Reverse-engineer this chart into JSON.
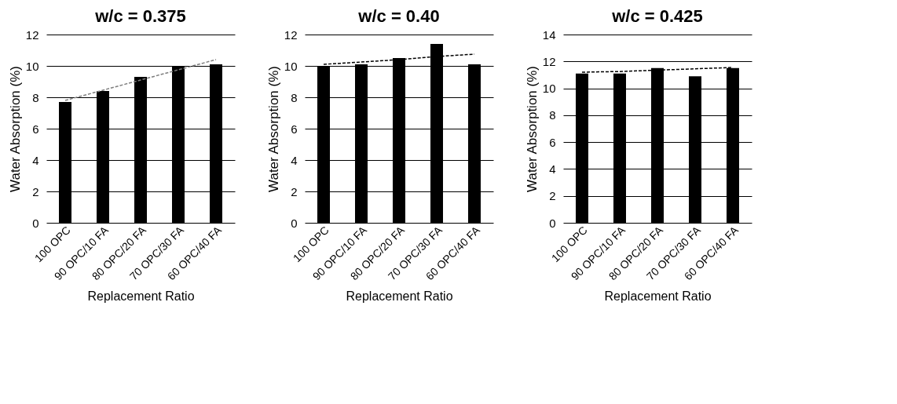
{
  "chart_data": [
    {
      "type": "bar",
      "title": "w/c = 0.375",
      "xlabel": "Replacement Ratio",
      "ylabel": "Water Absorption (%)",
      "categories": [
        "100 OPC",
        "90 OPC/10 FA",
        "80 OPC/20 FA",
        "70 OPC/30 FA",
        "60 OPC/40 FA"
      ],
      "ylim": [
        0,
        12
      ],
      "yticks": [
        0,
        2,
        4,
        6,
        8,
        10,
        12
      ],
      "grid": "y",
      "series": [
        {
          "color": "#000000",
          "values": [
            7.7,
            8.4,
            9.3,
            10.0,
            10.1
          ]
        },
        {
          "type": "line",
          "color": "#7f7f7f",
          "line_style": "dashed",
          "values": [
            7.8,
            8.45,
            9.1,
            9.75,
            10.4
          ]
        }
      ]
    },
    {
      "type": "bar",
      "title": "w/c = 0.40",
      "xlabel": "Replacement Ratio",
      "ylabel": "Water Absorption (%)",
      "categories": [
        "100 OPC",
        "90 OPC/10 FA",
        "80 OPC/20 FA",
        "70 OPC/30 FA",
        "60 OPC/40 FA"
      ],
      "ylim": [
        0,
        12
      ],
      "yticks": [
        0,
        2,
        4,
        6,
        8,
        10,
        12
      ],
      "grid": "y",
      "series": [
        {
          "color": "#000000",
          "values": [
            10.0,
            10.1,
            10.5,
            11.4,
            10.1
          ]
        },
        {
          "type": "line",
          "color": "#000000",
          "line_style": "dashed",
          "values": [
            10.1,
            10.25,
            10.4,
            10.6,
            10.75
          ]
        }
      ]
    },
    {
      "type": "bar",
      "title": "w/c = 0.425",
      "xlabel": "Replacement Ratio",
      "ylabel": "Water Absorption (%)",
      "categories": [
        "100 OPC",
        "90 OPC/10 FA",
        "80 OPC/20 FA",
        "70 OPC/30 FA",
        "60 OPC/40 FA"
      ],
      "ylim": [
        0,
        14
      ],
      "yticks": [
        0,
        2,
        4,
        6,
        8,
        10,
        12,
        14
      ],
      "grid": "y",
      "series": [
        {
          "color": "#000000",
          "values": [
            11.1,
            11.1,
            11.5,
            10.9,
            11.5
          ]
        },
        {
          "type": "line",
          "color": "#000000",
          "line_style": "dashed",
          "values": [
            11.2,
            11.25,
            11.35,
            11.45,
            11.55
          ]
        }
      ]
    }
  ]
}
